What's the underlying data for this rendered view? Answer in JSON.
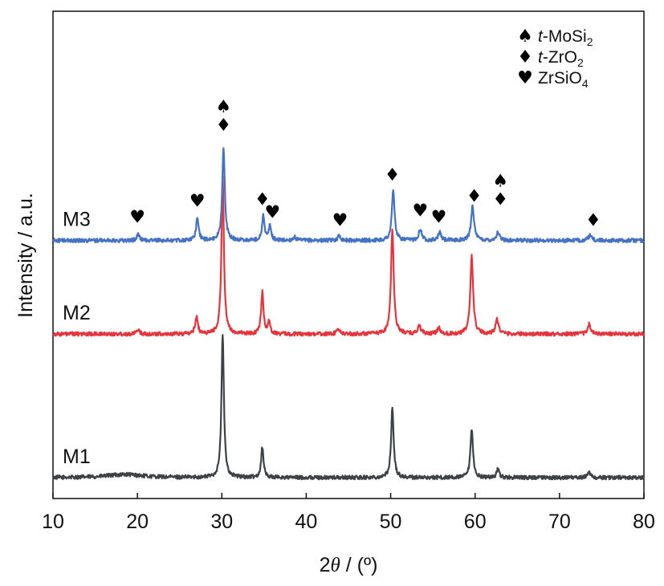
{
  "chart_data": {
    "type": "line",
    "xlabel_prefix": "2",
    "xlabel_theta": "θ",
    "xlabel_suffix": " / (º)",
    "ylabel": "Intensity / a.u.",
    "xlim": [
      10,
      80
    ],
    "x_ticks": [
      10,
      20,
      30,
      40,
      50,
      60,
      70,
      80
    ],
    "grid": false,
    "legend_position": "top-right",
    "legend": [
      {
        "symbol": "♠",
        "italic": "t",
        "text": "-MoSi",
        "sub": "2",
        "color": "#000000"
      },
      {
        "symbol": "♦",
        "italic": "t",
        "text": "-ZrO",
        "sub": "2",
        "color": "#555555"
      },
      {
        "symbol": "♥",
        "italic": "",
        "text": "ZrSiO",
        "sub": "4",
        "color": "#555555"
      }
    ],
    "series": [
      {
        "name": "M1",
        "color": "#3d4246",
        "baseline": 0.0,
        "noise": 0.012,
        "peaks": [
          [
            18.5,
            0.02,
            2.5
          ],
          [
            30.1,
            0.89,
            0.17
          ],
          [
            34.8,
            0.19,
            0.17
          ],
          [
            50.2,
            0.43,
            0.18
          ],
          [
            59.6,
            0.3,
            0.18
          ],
          [
            62.7,
            0.05,
            0.2
          ],
          [
            73.5,
            0.04,
            0.2
          ]
        ]
      },
      {
        "name": "M2",
        "color": "#e8333a",
        "baseline": 0.89,
        "noise": 0.012,
        "peaks": [
          [
            20.1,
            0.03,
            0.18
          ],
          [
            27.0,
            0.11,
            0.18
          ],
          [
            30.1,
            0.98,
            0.17
          ],
          [
            34.8,
            0.26,
            0.17
          ],
          [
            35.6,
            0.07,
            0.17
          ],
          [
            43.8,
            0.03,
            0.2
          ],
          [
            50.2,
            0.65,
            0.19
          ],
          [
            53.4,
            0.05,
            0.22
          ],
          [
            55.7,
            0.04,
            0.2
          ],
          [
            59.6,
            0.48,
            0.2
          ],
          [
            62.6,
            0.09,
            0.22
          ],
          [
            73.5,
            0.06,
            0.22
          ]
        ]
      },
      {
        "name": "M3",
        "color": "#4472c4",
        "baseline": 1.47,
        "noise": 0.012,
        "peaks": [
          [
            20.1,
            0.04,
            0.18
          ],
          [
            27.1,
            0.14,
            0.18
          ],
          [
            30.2,
            0.57,
            0.18
          ],
          [
            34.9,
            0.15,
            0.17
          ],
          [
            35.7,
            0.09,
            0.17
          ],
          [
            38.6,
            0.02,
            0.2
          ],
          [
            43.9,
            0.03,
            0.2
          ],
          [
            50.3,
            0.31,
            0.19
          ],
          [
            53.5,
            0.07,
            0.22
          ],
          [
            55.8,
            0.05,
            0.2
          ],
          [
            59.7,
            0.22,
            0.2
          ],
          [
            62.7,
            0.05,
            0.22
          ],
          [
            73.6,
            0.03,
            0.22
          ]
        ]
      }
    ],
    "annotations": [
      {
        "x": 20.0,
        "y": 1.58,
        "symbols": [
          "♥"
        ]
      },
      {
        "x": 27.1,
        "y": 1.68,
        "symbols": [
          "♥"
        ]
      },
      {
        "x": 30.2,
        "y": 2.15,
        "symbols": [
          "♠",
          "♦"
        ]
      },
      {
        "x": 34.8,
        "y": 1.69,
        "symbols": [
          "♦"
        ]
      },
      {
        "x": 36.0,
        "y": 1.61,
        "symbols": [
          "♥"
        ]
      },
      {
        "x": 44.0,
        "y": 1.56,
        "symbols": [
          "♥"
        ]
      },
      {
        "x": 50.2,
        "y": 1.84,
        "symbols": [
          "♦"
        ]
      },
      {
        "x": 53.5,
        "y": 1.62,
        "symbols": [
          "♥"
        ]
      },
      {
        "x": 55.7,
        "y": 1.58,
        "symbols": [
          "♥"
        ]
      },
      {
        "x": 59.9,
        "y": 1.71,
        "symbols": [
          "♦"
        ]
      },
      {
        "x": 63.0,
        "y": 1.69,
        "symbols": [
          "♠",
          "♦"
        ]
      },
      {
        "x": 74.0,
        "y": 1.56,
        "symbols": [
          "♦"
        ]
      }
    ]
  }
}
